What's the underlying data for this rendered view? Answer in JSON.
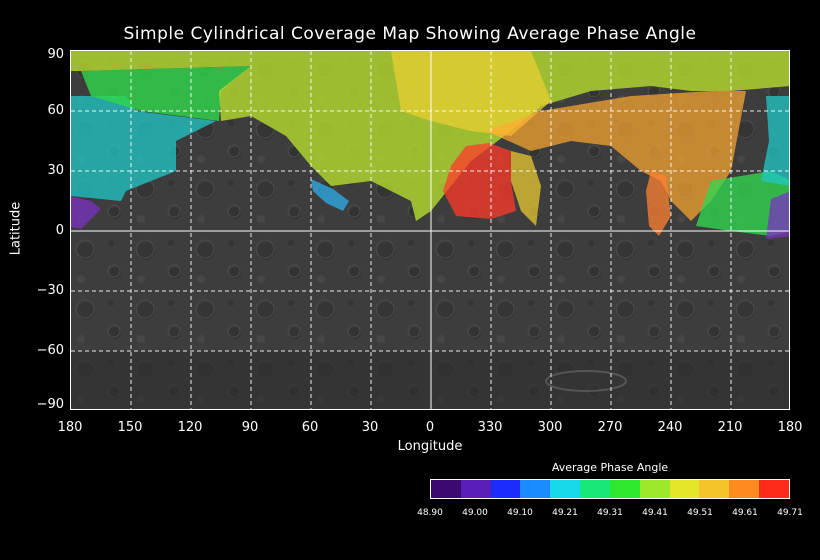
{
  "map": {
    "title": "Simple Cylindrical Coverage Map Showing Average Phase Angle",
    "x_axis_title": "Longitude",
    "y_axis_title": "Latitude",
    "latitude_ticks": [
      "90",
      "60",
      "30",
      "0",
      "−30",
      "−60",
      "−90"
    ],
    "longitude_ticks": [
      "180",
      "150",
      "120",
      "90",
      "60",
      "30",
      "0",
      "330",
      "300",
      "270",
      "240",
      "210",
      "180"
    ]
  },
  "colorbar": {
    "title": "Average Phase Angle",
    "labels": [
      "48.90",
      "49.00",
      "49.10",
      "49.21",
      "49.31",
      "49.41",
      "49.51",
      "49.61",
      "49.71"
    ],
    "colors": [
      "#3b0a6e",
      "#5a1fb8",
      "#1c2cff",
      "#1a8cff",
      "#17d8e8",
      "#18e87a",
      "#2ee82e",
      "#9ee82a",
      "#e6e629",
      "#f5c42a",
      "#ff8a1f",
      "#ff2a1a"
    ]
  },
  "colors": {
    "background": "#000000",
    "surface": "#3a3a3a",
    "grid": "#ffffff"
  }
}
